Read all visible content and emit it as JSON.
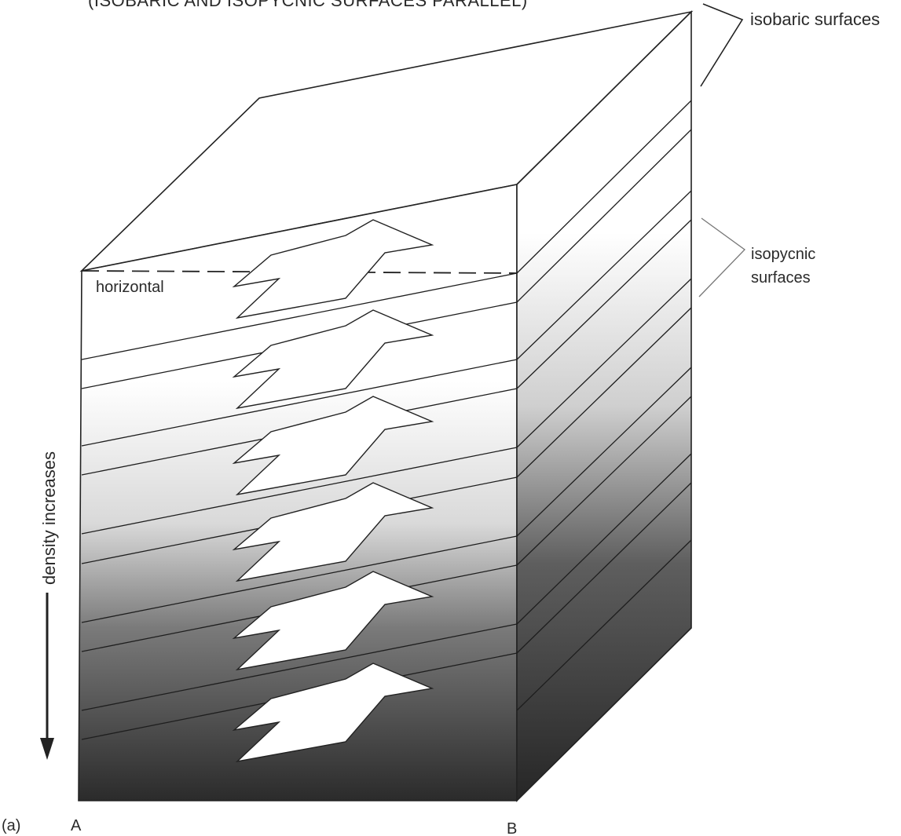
{
  "title": "(ISOBARIC AND ISOPYCNIC SURFACES PARALLEL)",
  "labels": {
    "isobaric": "isobaric surfaces",
    "isopycnic_line1": "isopycnic",
    "isopycnic_line2": "surfaces",
    "horizontal": "horizontal",
    "density": "density increases",
    "panel": "(a)",
    "corner_a": "A",
    "corner_b": "B"
  },
  "colors": {
    "line": "#222222",
    "shade_dark": "#2b2b2b",
    "shade_light": "#ffffff"
  }
}
